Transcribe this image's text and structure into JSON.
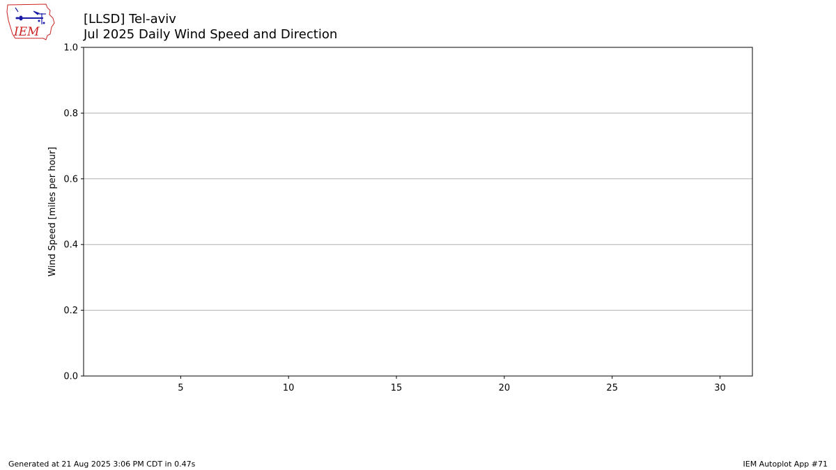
{
  "header": {
    "title_line1": "[LLSD] Tel-aviv",
    "title_line2": "Jul 2025 Daily Wind Speed and Direction",
    "logo_text": "IEM"
  },
  "footer": {
    "generated": "Generated at 21 Aug 2025 3:06 PM CDT in 0.47s",
    "app": "IEM Autoplot App #71"
  },
  "chart_data": {
    "type": "bar",
    "title": "[LLSD] Tel-aviv\nJul 2025 Daily Wind Speed and Direction",
    "xlabel": "",
    "ylabel": "Wind Speed [miles per hour]",
    "xlim": [
      0.5,
      31.5
    ],
    "ylim": [
      0.0,
      1.0
    ],
    "x_ticks": [
      5,
      10,
      15,
      20,
      25,
      30
    ],
    "y_ticks": [
      0.0,
      0.2,
      0.4,
      0.6,
      0.8,
      1.0
    ],
    "y_tick_labels": [
      "0.0",
      "0.2",
      "0.4",
      "0.6",
      "0.8",
      "1.0"
    ],
    "grid": "horizontal",
    "series": []
  },
  "colors": {
    "grid": "#b0b0b0",
    "axis": "#000000",
    "logo_red": "#cc2222",
    "logo_blue": "#1a1aa8"
  }
}
